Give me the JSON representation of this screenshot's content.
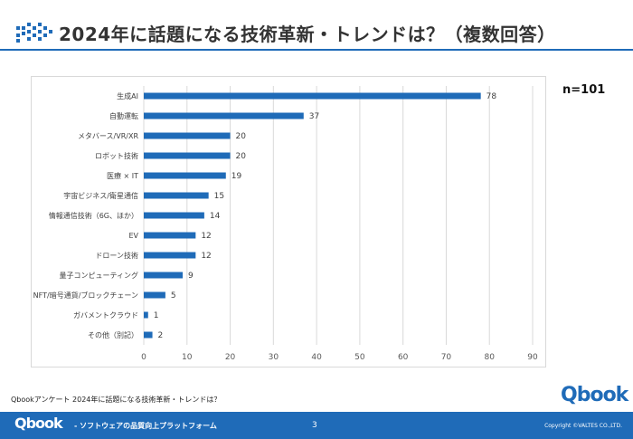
{
  "slide": {
    "title": "2024年に話題になる技術革新・トレンドは？（複数回答）",
    "sample_size": "n=101",
    "footnote": "Qbookアンケート 2024年に話題になる技術革新・トレンドは？",
    "brand_logo": "Qbook",
    "accent_color": "#1f6bb8"
  },
  "footer": {
    "logo": "Qbook",
    "tagline": "- ソフトウェアの品質向上プラットフォーム",
    "page_number": "3",
    "copyright": "Copyright ©VALTES CO.,LTD."
  },
  "chart_data": {
    "type": "bar",
    "orientation": "horizontal",
    "title": "2024年に話題になる技術革新・トレンドは？（複数回答）",
    "categories": [
      "生成AI",
      "自動運転",
      "メタバース/VR/XR",
      "ロボット技術",
      "医療 × IT",
      "宇宙ビジネス/衛星通信",
      "情報通信技術（6G、ほか）",
      "EV",
      "ドローン技術",
      "量子コンピューティング",
      "NFT/暗号通貨/ブロックチェーン",
      "ガバメントクラウド",
      "その他（別記）"
    ],
    "values": [
      78,
      37,
      20,
      20,
      19,
      15,
      14,
      12,
      12,
      9,
      5,
      1,
      2
    ],
    "xlim": [
      0,
      90
    ],
    "ticks": [
      0,
      10,
      20,
      30,
      40,
      50,
      60,
      70,
      80,
      90
    ],
    "grid": true,
    "bar_color": "#1f6bb8",
    "xlabel": "",
    "ylabel": ""
  }
}
